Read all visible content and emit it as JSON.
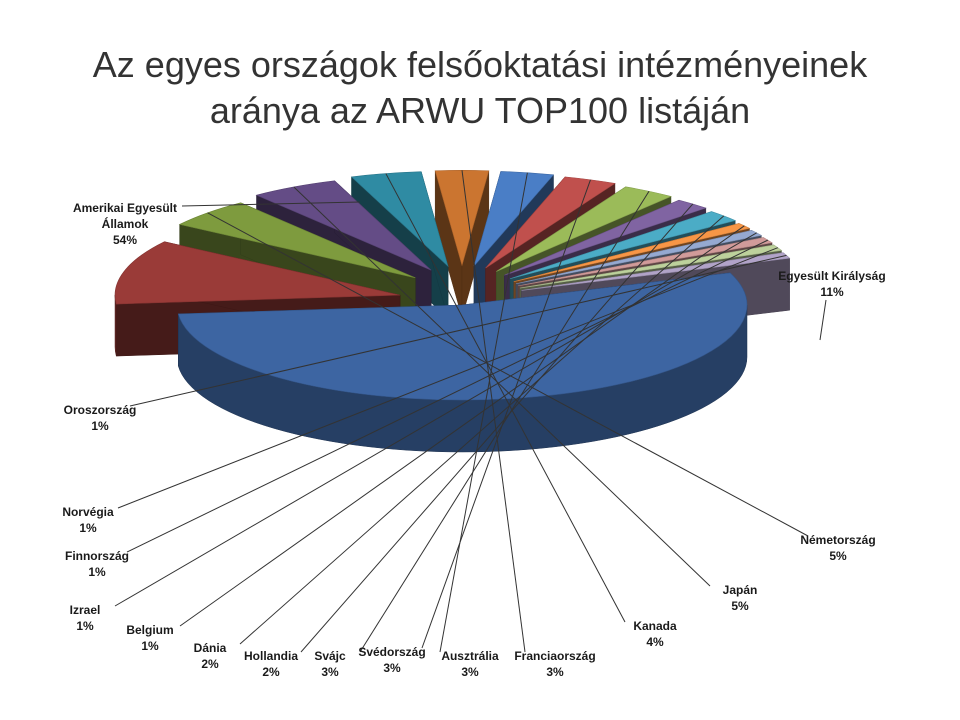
{
  "slide": {
    "title_line1": "Az egyes országok felsőoktatási intézményeinek",
    "title_line2": "aránya az ARWU TOP100 listáján"
  },
  "chart_data": {
    "type": "pie",
    "style": "3d-exploded",
    "title": "Az egyes országok felsőoktatási intézményeinek aránya az ARWU TOP100 listáján",
    "categories": [
      "Amerikai Egyesült Államok",
      "Egyesült Királyság",
      "Németország",
      "Japán",
      "Kanada",
      "Franciaország",
      "Ausztrália",
      "Svédország",
      "Svájc",
      "Hollandia",
      "Dánia",
      "Belgium",
      "Izrael",
      "Finnország",
      "Norvégia",
      "Oroszország"
    ],
    "values": [
      54,
      11,
      5,
      5,
      4,
      3,
      3,
      3,
      3,
      2,
      2,
      1,
      1,
      1,
      1,
      1
    ],
    "value_labels": [
      "54%",
      "11%",
      "5%",
      "5%",
      "4%",
      "3%",
      "3%",
      "3%",
      "3%",
      "2%",
      "2%",
      "1%",
      "1%",
      "1%",
      "1%",
      "1%"
    ],
    "colors": [
      "#3D65A2",
      "#9A3B38",
      "#7E9B3E",
      "#644C86",
      "#2F8BA3",
      "#CB7530",
      "#4A7EC6",
      "#C0504D",
      "#9BBB59",
      "#8064A2",
      "#4BACC6",
      "#F79646",
      "#95A9D1",
      "#D19B9A",
      "#BDD19C",
      "#B1A3C8"
    ],
    "legend": "none",
    "labels_position": "outside-with-leader-lines"
  }
}
